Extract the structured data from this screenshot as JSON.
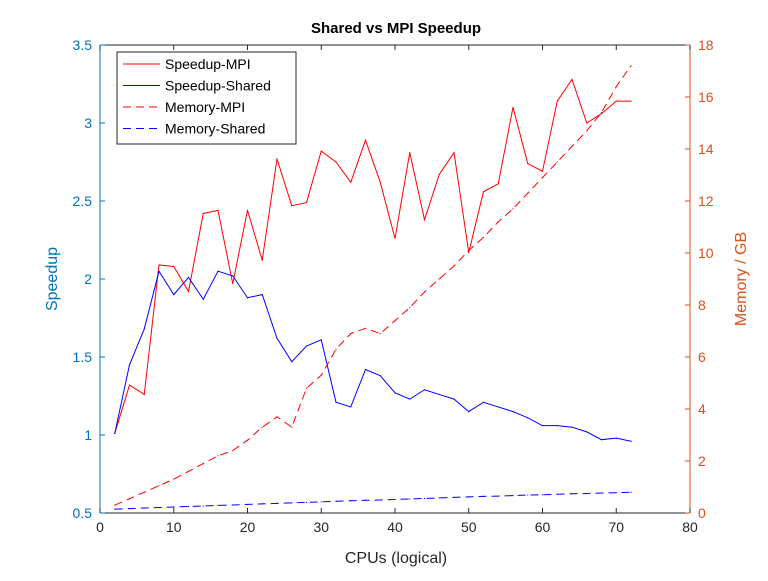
{
  "chart_data": {
    "type": "line",
    "title": "Shared vs MPI Speedup",
    "xlabel": "CPUs (logical)",
    "ylabel_left": "Speedup",
    "ylabel_right": "Memory / GB",
    "xlim": [
      0,
      80
    ],
    "ylim_left": [
      0.5,
      3.5
    ],
    "ylim_right": [
      0,
      18
    ],
    "xticks": [
      "0",
      "10",
      "20",
      "30",
      "40",
      "50",
      "60",
      "70",
      "80"
    ],
    "yticks_left": [
      "0.5",
      "1",
      "1.5",
      "2",
      "2.5",
      "3",
      "3.5"
    ],
    "yticks_right": [
      "0",
      "2",
      "4",
      "6",
      "8",
      "10",
      "12",
      "14",
      "16",
      "18"
    ],
    "grid": false,
    "legend_position": "top-left",
    "colors": {
      "left_axis": "#0072BD",
      "right_axis": "#D95319",
      "mpi": "#FF0000",
      "shared": "#0000FF"
    },
    "x": [
      2,
      4,
      6,
      8,
      10,
      12,
      14,
      16,
      18,
      20,
      22,
      24,
      26,
      28,
      30,
      32,
      34,
      36,
      38,
      40,
      42,
      44,
      46,
      48,
      50,
      52,
      54,
      56,
      58,
      60,
      62,
      64,
      66,
      68,
      70,
      72
    ],
    "series": [
      {
        "name": "Speedup-MPI",
        "axis": "left",
        "style": "solid",
        "color": "#FF0000",
        "values": [
          1.01,
          1.32,
          1.26,
          2.09,
          2.08,
          1.92,
          2.42,
          2.44,
          1.97,
          2.44,
          2.12,
          2.77,
          2.47,
          2.49,
          2.82,
          2.75,
          2.62,
          2.89,
          2.62,
          2.26,
          2.81,
          2.38,
          2.67,
          2.81,
          2.17,
          2.56,
          2.61,
          3.1,
          2.74,
          2.69,
          3.14,
          3.28,
          3.0,
          3.06,
          3.14,
          3.14
        ]
      },
      {
        "name": "Speedup-Shared",
        "axis": "left",
        "style": "solid",
        "color": "#0000FF",
        "values": [
          1.01,
          1.45,
          1.68,
          2.05,
          1.9,
          2.01,
          1.87,
          2.05,
          2.02,
          1.88,
          1.9,
          1.62,
          1.47,
          1.57,
          1.61,
          1.21,
          1.18,
          1.42,
          1.38,
          1.27,
          1.23,
          1.29,
          1.26,
          1.23,
          1.15,
          1.21,
          1.18,
          1.15,
          1.11,
          1.06,
          1.06,
          1.05,
          1.02,
          0.97,
          0.98,
          0.96
        ]
      },
      {
        "name": "Memory-MPI",
        "axis": "right",
        "style": "dashed",
        "color": "#FF0000",
        "values": [
          0.3,
          0.55,
          0.8,
          1.05,
          1.3,
          1.6,
          1.9,
          2.2,
          2.4,
          2.8,
          3.3,
          3.7,
          3.3,
          4.8,
          5.3,
          6.3,
          6.9,
          7.1,
          6.9,
          7.4,
          7.9,
          8.5,
          9.0,
          9.5,
          10.1,
          10.6,
          11.2,
          11.7,
          12.3,
          12.9,
          13.5,
          14.1,
          14.7,
          15.4,
          16.4,
          17.2
        ]
      },
      {
        "name": "Memory-Shared",
        "axis": "right",
        "style": "dashed",
        "color": "#0000FF",
        "values": [
          0.15,
          0.17,
          0.19,
          0.21,
          0.23,
          0.25,
          0.27,
          0.29,
          0.31,
          0.33,
          0.35,
          0.37,
          0.39,
          0.41,
          0.43,
          0.45,
          0.47,
          0.49,
          0.5,
          0.52,
          0.54,
          0.56,
          0.58,
          0.6,
          0.62,
          0.64,
          0.65,
          0.67,
          0.69,
          0.7,
          0.72,
          0.74,
          0.75,
          0.77,
          0.78,
          0.8
        ]
      }
    ]
  }
}
